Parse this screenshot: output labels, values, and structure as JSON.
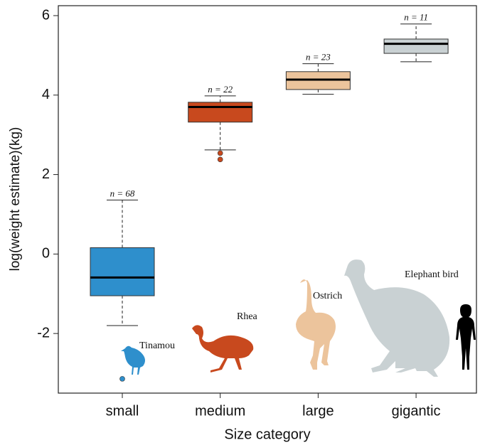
{
  "chart_data": {
    "type": "box",
    "xlabel": "Size category",
    "ylabel": "log(weight estimate)(kg)",
    "categories": [
      "small",
      "medium",
      "large",
      "gigantic"
    ],
    "ylim": [
      -3.5,
      6.25
    ],
    "yticks": [
      -2,
      0,
      2,
      4,
      6
    ],
    "boxes": [
      {
        "min": -1.8,
        "q1": -1.05,
        "median": -0.59,
        "q3": 0.16,
        "max": 1.36,
        "outliers": [
          -3.14
        ],
        "n_label": "n = 68",
        "color": "#2e8fcc"
      },
      {
        "min": 2.62,
        "q1": 3.32,
        "median": 3.7,
        "q3": 3.82,
        "max": 3.98,
        "outliers": [
          2.54,
          2.38
        ],
        "n_label": "n = 22",
        "color": "#c8491e"
      },
      {
        "min": 4.02,
        "q1": 4.14,
        "median": 4.39,
        "q3": 4.59,
        "max": 4.79,
        "outliers": [],
        "n_label": "n = 23",
        "color": "#ecc49c"
      },
      {
        "min": 4.84,
        "q1": 5.05,
        "median": 5.29,
        "q3": 5.41,
        "max": 5.79,
        "outliers": [],
        "n_label": "n = 11",
        "color": "#c9d1d3"
      }
    ],
    "annotations": [
      "Tinamou",
      "Rhea",
      "Ostrich",
      "Elephant bird"
    ]
  }
}
